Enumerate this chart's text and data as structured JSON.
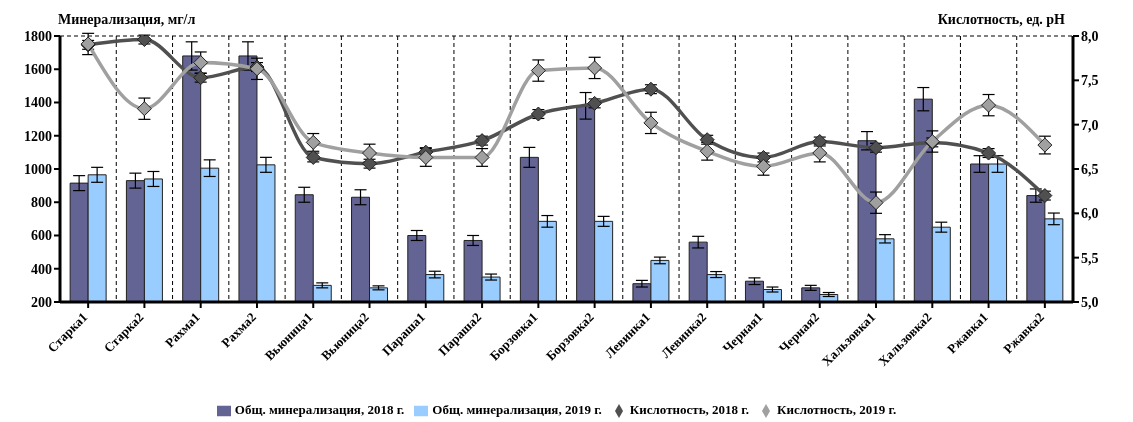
{
  "chart_data": {
    "type": "bar",
    "ylabel": "Минерализация, мг/л",
    "y2label": "Кислотность, ед. pH",
    "categories": [
      "Старка1",
      "Старка2",
      "Рахма1",
      "Рахма2",
      "Вьюница1",
      "Вьюница2",
      "Параша1",
      "Параша2",
      "Борзовка1",
      "Борзовка2",
      "Левинка1",
      "Левинка2",
      "Черная1",
      "Черная2",
      "Хальзовка1",
      "Хальзовка2",
      "Ржавка1",
      "Ржавка2"
    ],
    "series": [
      {
        "name": "Общ. минерализация, 2018 г.",
        "color": "#636394",
        "values": [
          915,
          930,
          1680,
          1680,
          845,
          830,
          600,
          570,
          1070,
          1380,
          310,
          560,
          325,
          285,
          1170,
          1420,
          1030,
          840
        ],
        "errors": [
          45,
          45,
          85,
          85,
          45,
          45,
          30,
          30,
          60,
          80,
          20,
          35,
          20,
          15,
          55,
          70,
          50,
          40
        ]
      },
      {
        "name": "Общ. минерализация, 2019 г.",
        "color": "#99ccff",
        "values": [
          965,
          940,
          1005,
          1025,
          300,
          285,
          365,
          350,
          685,
          685,
          450,
          365,
          275,
          245,
          580,
          650,
          1030,
          700
        ],
        "errors": [
          45,
          45,
          50,
          45,
          15,
          12,
          20,
          18,
          35,
          30,
          20,
          18,
          15,
          12,
          25,
          30,
          50,
          35
        ]
      },
      {
        "name": "Кислотность, 2018 г.",
        "type": "line",
        "axis": "y2",
        "color": "#505050",
        "values": [
          7.9,
          7.96,
          7.53,
          7.65,
          6.63,
          6.56,
          6.69,
          6.82,
          7.12,
          7.24,
          7.4,
          6.83,
          6.63,
          6.81,
          6.74,
          6.8,
          6.68,
          6.2
        ],
        "errors": [
          0.05,
          0.05,
          0.05,
          0.05,
          0.05,
          0.05,
          0.05,
          0.05,
          0.05,
          0.05,
          0.05,
          0.05,
          0.05,
          0.05,
          0.05,
          0.05,
          0.05,
          0.05
        ]
      },
      {
        "name": "Кислотность, 2019 г.",
        "type": "line",
        "axis": "y2",
        "color": "#a0a0a0",
        "values": [
          7.91,
          7.18,
          7.7,
          7.63,
          6.8,
          6.68,
          6.63,
          6.63,
          7.61,
          7.64,
          7.02,
          6.7,
          6.53,
          6.68,
          6.12,
          6.81,
          7.22,
          6.77
        ],
        "errors": [
          0.12,
          0.12,
          0.12,
          0.12,
          0.1,
          0.1,
          0.1,
          0.1,
          0.12,
          0.12,
          0.12,
          0.1,
          0.1,
          0.1,
          0.12,
          0.12,
          0.12,
          0.1
        ]
      }
    ],
    "ylim": [
      200,
      1800
    ],
    "yticks": [
      200,
      400,
      600,
      800,
      1000,
      1200,
      1400,
      1600,
      1800
    ],
    "y2lim": [
      5,
      8
    ],
    "y2ticks": [
      {
        "value": 5,
        "label": "5,0"
      },
      {
        "value": 5.5,
        "label": "5,5"
      },
      {
        "value": 6,
        "label": "6,0"
      },
      {
        "value": 6.5,
        "label": "6,5"
      },
      {
        "value": 7,
        "label": "7,0"
      },
      {
        "value": 7.5,
        "label": "7,5"
      },
      {
        "value": 8,
        "label": "8,0"
      }
    ],
    "grid": true,
    "legend": "bottom",
    "marker": "diamond",
    "line_style": "solid"
  }
}
